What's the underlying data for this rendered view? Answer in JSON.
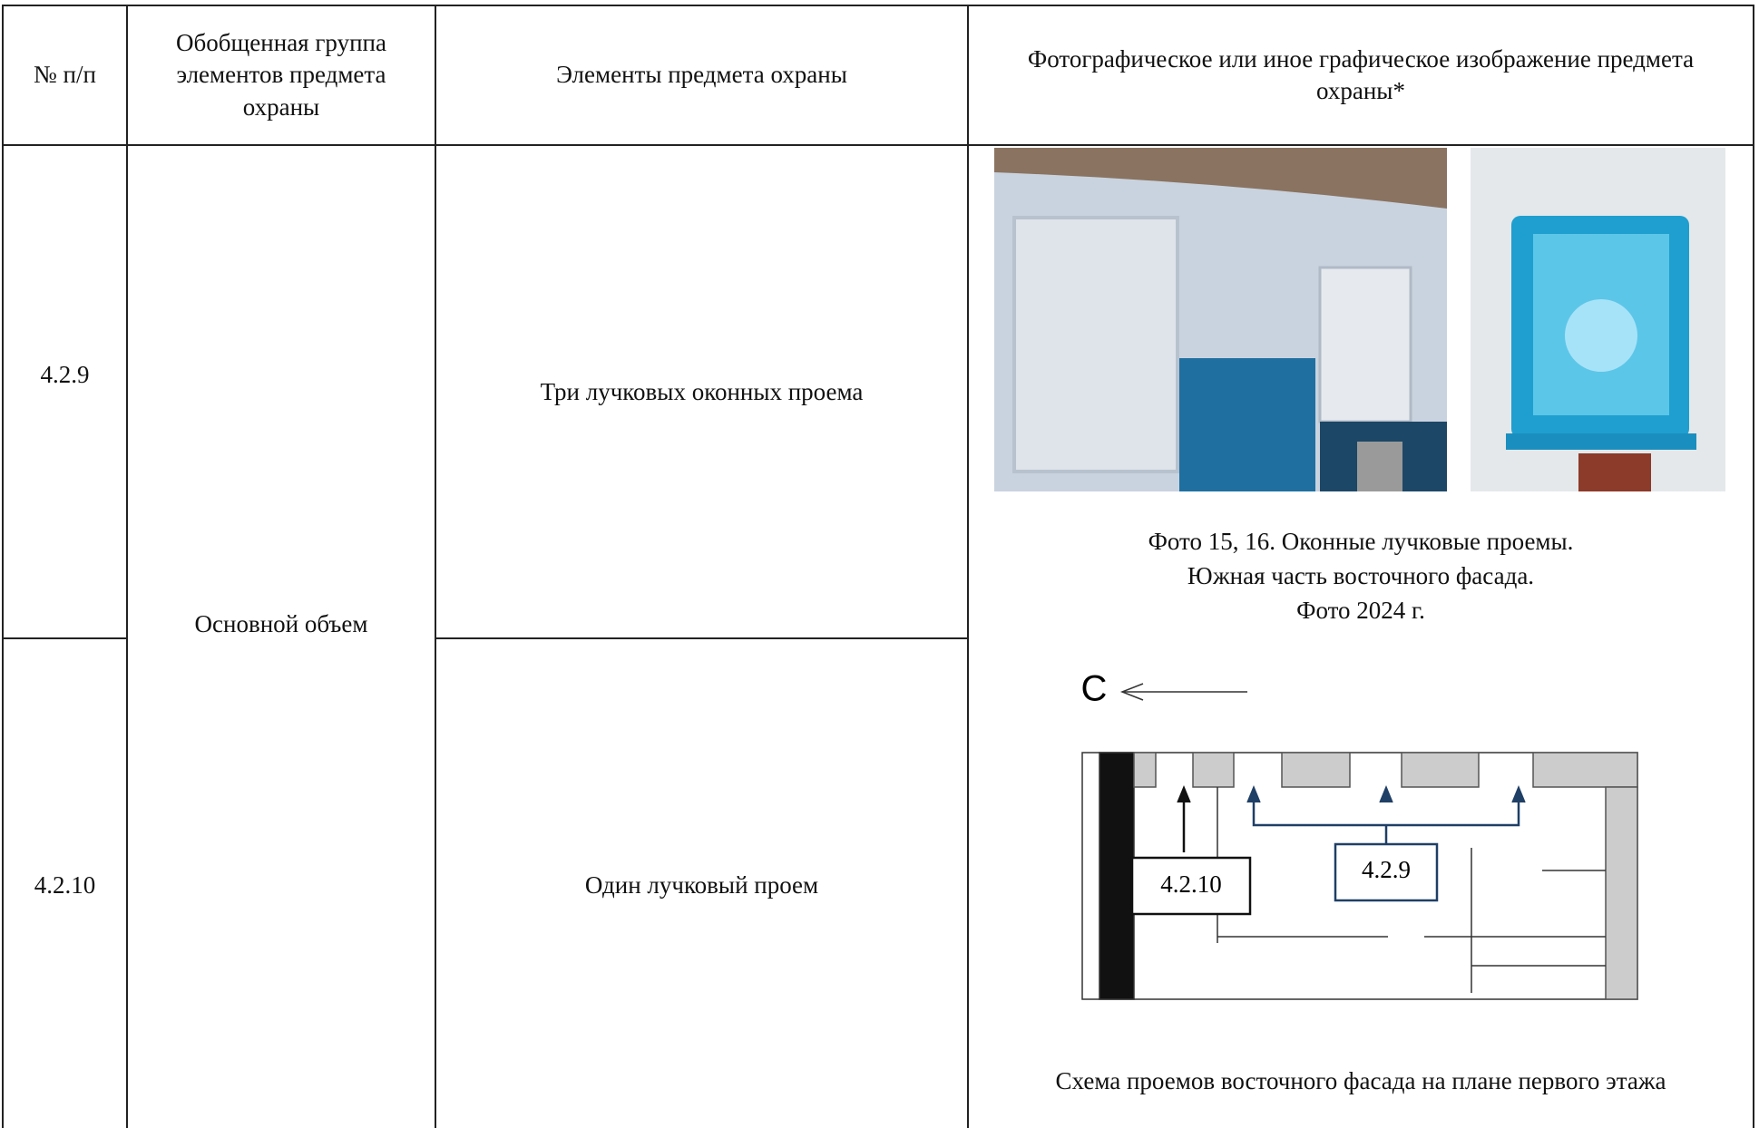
{
  "table": {
    "header": [
      "№ п/п",
      "Обобщенная группа элементов предмета охраны",
      "Элементы предмета охраны",
      "Фотографическое или иное графическое изображение предмета охраны*"
    ],
    "group": "Основной объем",
    "rows": [
      {
        "number": "4.2.9",
        "element": "Три лучковых оконных проема"
      },
      {
        "number": "4.2.10",
        "element": "Один лучковый проем"
      }
    ]
  },
  "figure": {
    "photo_caption": [
      "Фото 15, 16. Оконные лучковые проемы.",
      "Южная часть восточного фасада.",
      "Фото 2024 г."
    ],
    "schema": {
      "north": "С",
      "labels": [
        "4.2.10",
        "4.2.9"
      ]
    },
    "schema_caption": "Схема проемов восточного фасада на плане первого этажа"
  }
}
